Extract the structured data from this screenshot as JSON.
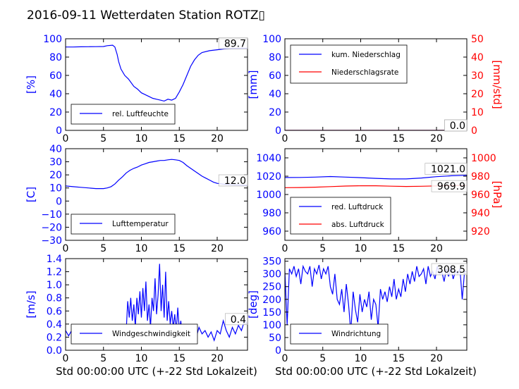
{
  "figure": {
    "title": "2016-09-11 Wetterdaten Station ROTZ▯",
    "xlabel": "Std 00:00:00 UTC (+-22 Std Lokalzeit)"
  },
  "chart_data": [
    {
      "id": "humidity",
      "type": "line",
      "ylabel": "[%]",
      "xlim": [
        0,
        24
      ],
      "ylim": [
        0,
        100
      ],
      "xticks": [
        "0",
        "5",
        "10",
        "15",
        "20"
      ],
      "yticks": [
        "0",
        "20",
        "40",
        "60",
        "80",
        "100"
      ],
      "axis_color": "#0000ff",
      "legend_position": "lower-left",
      "last_value_label": "89.7",
      "series": [
        {
          "name": "rel. Luftfeuchte",
          "color": "#0000ff",
          "x": [
            0,
            1,
            2,
            3,
            4,
            5,
            5.5,
            6.2,
            6.5,
            6.8,
            7.0,
            7.3,
            7.8,
            8.3,
            9,
            9.5,
            10,
            10.5,
            11,
            11.5,
            12,
            12.5,
            13,
            13.5,
            14,
            14.5,
            15,
            15.5,
            16,
            16.5,
            17,
            17.5,
            18,
            19,
            20,
            21,
            22,
            23,
            24
          ],
          "y": [
            91,
            91,
            91.2,
            91.3,
            91.4,
            91.5,
            92.5,
            93,
            91,
            83,
            75,
            67,
            60,
            56,
            48,
            45,
            41,
            39,
            37,
            35,
            34,
            33,
            32,
            34,
            33,
            35,
            42,
            50,
            60,
            70,
            77,
            82,
            85,
            87,
            88,
            89,
            89.5,
            89.6,
            89.7
          ]
        }
      ]
    },
    {
      "id": "precip",
      "type": "line",
      "ylabel": "[mm]",
      "y2label": "[mm/std]",
      "xlim": [
        0,
        24
      ],
      "ylim": [
        0,
        100
      ],
      "y2lim": [
        0,
        50
      ],
      "xticks": [
        "0",
        "5",
        "10",
        "15",
        "20"
      ],
      "yticks": [
        "0",
        "20",
        "40",
        "60",
        "80",
        "100"
      ],
      "y2ticks": [
        "0",
        "10",
        "20",
        "30",
        "40",
        "50"
      ],
      "axis_color": "#0000ff",
      "axis2_color": "#ff0000",
      "legend_position": "upper-left",
      "last_value_labels": [
        "0.0",
        "0.0"
      ],
      "series": [
        {
          "name": "kum. Niederschlag",
          "color": "#0000ff",
          "axis": "left",
          "x": [
            0,
            24
          ],
          "y": [
            0,
            0
          ]
        },
        {
          "name": "Niederschlagsrate",
          "color": "#ff0000",
          "axis": "right",
          "x": [
            0,
            24
          ],
          "y": [
            0,
            0
          ]
        }
      ]
    },
    {
      "id": "temperature",
      "type": "line",
      "ylabel": "[C]",
      "xlim": [
        0,
        24
      ],
      "ylim": [
        -30,
        40
      ],
      "xticks": [
        "0",
        "5",
        "10",
        "15",
        "20"
      ],
      "yticks": [
        "−30",
        "−20",
        "−10",
        "0",
        "10",
        "20",
        "30",
        "40"
      ],
      "axis_color": "#0000ff",
      "legend_position": "lower-left",
      "last_value_label": "12.0",
      "series": [
        {
          "name": "Lufttemperatur",
          "color": "#0000ff",
          "x": [
            0,
            1,
            2,
            3,
            4,
            5,
            5.5,
            6,
            6.5,
            7,
            7.5,
            8,
            8.5,
            9,
            9.5,
            10,
            10.5,
            11,
            11.5,
            12,
            12.5,
            13,
            13.5,
            14,
            14.5,
            15,
            15.5,
            16,
            16.5,
            17,
            17.5,
            18,
            18.5,
            19,
            19.5,
            20,
            21,
            22,
            23,
            24
          ],
          "y": [
            11.5,
            11,
            10.5,
            10,
            9.5,
            9.5,
            10,
            11,
            13,
            16,
            18.5,
            21.5,
            23.5,
            25,
            26,
            27.5,
            28.5,
            29.5,
            30,
            30.5,
            31,
            31,
            31.5,
            31.8,
            31.5,
            31,
            29.5,
            27,
            25,
            23,
            21,
            19,
            17.5,
            16,
            14.5,
            13.5,
            12.8,
            12.4,
            12.2,
            12.0
          ]
        }
      ]
    },
    {
      "id": "pressure",
      "type": "line",
      "ylabel": "",
      "y2label": "[hPa]",
      "xlim": [
        0,
        24
      ],
      "ylim": [
        950,
        1050
      ],
      "y2lim": [
        910,
        1010
      ],
      "xticks": [
        "0",
        "5",
        "10",
        "15",
        "20"
      ],
      "yticks": [
        "960",
        "980",
        "1000",
        "1020",
        "1040"
      ],
      "y2ticks": [
        "920",
        "940",
        "960",
        "980",
        "1000"
      ],
      "axis_color": "#0000ff",
      "axis2_color": "#ff0000",
      "legend_position": "lower-left",
      "last_value_labels": [
        "1021.0",
        "969.9"
      ],
      "series": [
        {
          "name": "red. Luftdruck",
          "color": "#0000ff",
          "axis": "left",
          "x": [
            0,
            2,
            4,
            6,
            8,
            10,
            12,
            14,
            16,
            18,
            20,
            22,
            24
          ],
          "y": [
            1018.5,
            1018.6,
            1019,
            1019.6,
            1019,
            1018.4,
            1017.6,
            1017,
            1017,
            1018,
            1019.5,
            1020.5,
            1021.0
          ]
        },
        {
          "name": "abs. Luftdruck",
          "color": "#ff0000",
          "axis": "right",
          "x": [
            0,
            2,
            4,
            6,
            8,
            10,
            12,
            14,
            16,
            18,
            20,
            22,
            24
          ],
          "y": [
            967.5,
            967.6,
            968,
            968.6,
            969.2,
            969.5,
            969.5,
            969.1,
            968.8,
            969.0,
            969.4,
            969.7,
            969.9
          ]
        }
      ]
    },
    {
      "id": "windspeed",
      "type": "line",
      "ylabel": "[m/s]",
      "xlim": [
        0,
        24
      ],
      "ylim": [
        0,
        1.4
      ],
      "xticks": [
        "0",
        "5",
        "10",
        "15",
        "20"
      ],
      "yticks": [
        "0.0",
        "0.2",
        "0.4",
        "0.6",
        "0.8",
        "1.0",
        "1.2",
        "1.4"
      ],
      "axis_color": "#0000ff",
      "legend_position": "lower-left",
      "last_value_label": "0.4",
      "series": [
        {
          "name": "Windgeschwindigkeit",
          "color": "#0000ff",
          "x": [
            0,
            0.4,
            0.8,
            1.2,
            1.6,
            2.0,
            2.4,
            2.8,
            3.2,
            3.6,
            4.0,
            4.4,
            4.8,
            5.2,
            5.6,
            6.0,
            6.4,
            6.8,
            7.2,
            7.6,
            8.0,
            8.2,
            8.4,
            8.6,
            8.8,
            9.0,
            9.2,
            9.4,
            9.6,
            9.8,
            10.0,
            10.2,
            10.4,
            10.6,
            10.8,
            11.0,
            11.2,
            11.4,
            11.6,
            11.8,
            12.0,
            12.2,
            12.4,
            12.6,
            12.8,
            13.0,
            13.2,
            13.4,
            13.6,
            13.8,
            14.0,
            14.2,
            14.4,
            14.6,
            14.8,
            15.0,
            15.2,
            15.4,
            15.6,
            15.8,
            16.0,
            16.4,
            16.8,
            17.2,
            17.6,
            18.0,
            18.4,
            18.8,
            19.2,
            19.6,
            20.0,
            20.4,
            20.8,
            21.2,
            21.6,
            22.0,
            22.4,
            22.8,
            23.2,
            23.6,
            24.0
          ],
          "y": [
            0.3,
            0.22,
            0.3,
            0.2,
            0.28,
            0.22,
            0.3,
            0.18,
            0.25,
            0.2,
            0.3,
            0.22,
            0.18,
            0.15,
            0.1,
            0.18,
            0.22,
            0.25,
            0.2,
            0.28,
            0.3,
            0.75,
            0.5,
            0.8,
            0.45,
            0.7,
            0.35,
            0.8,
            0.55,
            0.9,
            0.5,
            0.95,
            0.6,
            1.05,
            0.45,
            0.7,
            0.35,
            0.8,
            0.6,
            1.1,
            0.55,
            0.85,
            1.32,
            0.6,
            1.0,
            0.5,
            1.2,
            0.45,
            0.75,
            0.4,
            0.6,
            0.35,
            0.55,
            0.28,
            0.65,
            0.3,
            0.45,
            0.2,
            0.4,
            0.25,
            0.35,
            0.22,
            0.3,
            0.18,
            0.35,
            0.25,
            0.3,
            0.2,
            0.28,
            0.15,
            0.3,
            0.25,
            0.45,
            0.3,
            0.2,
            0.35,
            0.25,
            0.38,
            0.3,
            0.45,
            0.4
          ]
        }
      ]
    },
    {
      "id": "winddir",
      "type": "line",
      "ylabel": "[deg]",
      "xlim": [
        0,
        24
      ],
      "ylim": [
        0,
        360
      ],
      "xticks": [
        "0",
        "5",
        "10",
        "15",
        "20"
      ],
      "yticks": [
        "0",
        "50",
        "100",
        "150",
        "200",
        "250",
        "300",
        "350"
      ],
      "axis_color": "#0000ff",
      "legend_position": "lower-left",
      "last_value_label": "308.5",
      "series": [
        {
          "name": "Windrichtung",
          "color": "#0000ff",
          "x": [
            0,
            0.3,
            0.6,
            0.9,
            1.2,
            1.5,
            1.8,
            2.1,
            2.4,
            2.7,
            3.0,
            3.3,
            3.6,
            3.9,
            4.2,
            4.5,
            4.8,
            5.1,
            5.4,
            5.7,
            6.0,
            6.3,
            6.6,
            6.9,
            7.2,
            7.5,
            7.8,
            8.1,
            8.4,
            8.7,
            9.0,
            9.3,
            9.6,
            9.9,
            10.2,
            10.5,
            10.8,
            11.1,
            11.4,
            11.7,
            12.0,
            12.3,
            12.6,
            12.9,
            13.2,
            13.5,
            13.8,
            14.1,
            14.4,
            14.7,
            15.0,
            15.3,
            15.6,
            15.9,
            16.2,
            16.5,
            16.8,
            17.1,
            17.4,
            17.7,
            18.0,
            18.3,
            18.6,
            18.9,
            19.2,
            19.5,
            19.8,
            20.1,
            20.4,
            20.7,
            21.0,
            21.3,
            21.6,
            21.9,
            22.2,
            22.5,
            22.8,
            23.1,
            23.4,
            23.7,
            24.0
          ],
          "y": [
            310,
            100,
            320,
            300,
            330,
            290,
            320,
            260,
            330,
            310,
            300,
            330,
            250,
            320,
            300,
            335,
            280,
            320,
            300,
            330,
            250,
            220,
            300,
            200,
            180,
            240,
            150,
            260,
            180,
            70,
            230,
            160,
            110,
            220,
            150,
            200,
            170,
            230,
            120,
            200,
            180,
            90,
            240,
            200,
            230,
            190,
            250,
            210,
            280,
            200,
            240,
            210,
            280,
            230,
            300,
            260,
            310,
            270,
            330,
            290,
            300,
            320,
            260,
            330,
            290,
            310,
            280,
            330,
            300,
            310,
            270,
            320,
            290,
            330,
            280,
            310,
            300,
            320,
            200,
            310,
            308.5
          ]
        }
      ]
    }
  ]
}
